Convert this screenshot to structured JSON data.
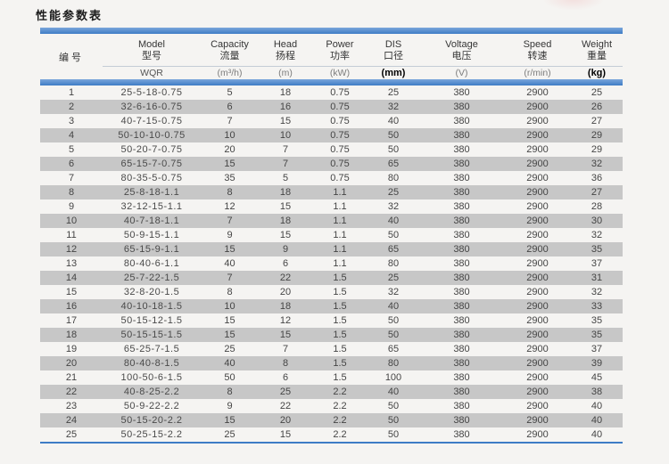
{
  "page": {
    "title": "性能参数表"
  },
  "colors": {
    "accent_blue": "#3e7cc5",
    "row_stripe": "#c7c7c7",
    "background": "#f5f4f2"
  },
  "table": {
    "columns": [
      {
        "key": "num",
        "label_en": "",
        "label_zh": "编号",
        "unit": ""
      },
      {
        "key": "model",
        "label_en": "Model",
        "label_zh": "型号",
        "unit": "WQR"
      },
      {
        "key": "capacity",
        "label_en": "Capacity",
        "label_zh": "流量",
        "unit": "(m³/h)"
      },
      {
        "key": "head",
        "label_en": "Head",
        "label_zh": "扬程",
        "unit": "(m)"
      },
      {
        "key": "power",
        "label_en": "Power",
        "label_zh": "功率",
        "unit": "(kW)"
      },
      {
        "key": "dis",
        "label_en": "DIS",
        "label_zh": "口径",
        "unit": "(mm)"
      },
      {
        "key": "voltage",
        "label_en": "Voltage",
        "label_zh": "电压",
        "unit": "(V)"
      },
      {
        "key": "speed",
        "label_en": "Speed",
        "label_zh": "转速",
        "unit": "(r/min)"
      },
      {
        "key": "weight",
        "label_en": "Weight",
        "label_zh": "重量",
        "unit": "(kg)"
      }
    ],
    "rows": [
      [
        "1",
        "25-5-18-0.75",
        "5",
        "18",
        "0.75",
        "25",
        "380",
        "2900",
        "25"
      ],
      [
        "2",
        "32-6-16-0.75",
        "6",
        "16",
        "0.75",
        "32",
        "380",
        "2900",
        "26"
      ],
      [
        "3",
        "40-7-15-0.75",
        "7",
        "15",
        "0.75",
        "40",
        "380",
        "2900",
        "27"
      ],
      [
        "4",
        "50-10-10-0.75",
        "10",
        "10",
        "0.75",
        "50",
        "380",
        "2900",
        "29"
      ],
      [
        "5",
        "50-20-7-0.75",
        "20",
        "7",
        "0.75",
        "50",
        "380",
        "2900",
        "29"
      ],
      [
        "6",
        "65-15-7-0.75",
        "15",
        "7",
        "0.75",
        "65",
        "380",
        "2900",
        "32"
      ],
      [
        "7",
        "80-35-5-0.75",
        "35",
        "5",
        "0.75",
        "80",
        "380",
        "2900",
        "36"
      ],
      [
        "8",
        "25-8-18-1.1",
        "8",
        "18",
        "1.1",
        "25",
        "380",
        "2900",
        "27"
      ],
      [
        "9",
        "32-12-15-1.1",
        "12",
        "15",
        "1.1",
        "32",
        "380",
        "2900",
        "28"
      ],
      [
        "10",
        "40-7-18-1.1",
        "7",
        "18",
        "1.1",
        "40",
        "380",
        "2900",
        "30"
      ],
      [
        "11",
        "50-9-15-1.1",
        "9",
        "15",
        "1.1",
        "50",
        "380",
        "2900",
        "32"
      ],
      [
        "12",
        "65-15-9-1.1",
        "15",
        "9",
        "1.1",
        "65",
        "380",
        "2900",
        "35"
      ],
      [
        "13",
        "80-40-6-1.1",
        "40",
        "6",
        "1.1",
        "80",
        "380",
        "2900",
        "37"
      ],
      [
        "14",
        "25-7-22-1.5",
        "7",
        "22",
        "1.5",
        "25",
        "380",
        "2900",
        "31"
      ],
      [
        "15",
        "32-8-20-1.5",
        "8",
        "20",
        "1.5",
        "32",
        "380",
        "2900",
        "32"
      ],
      [
        "16",
        "40-10-18-1.5",
        "10",
        "18",
        "1.5",
        "40",
        "380",
        "2900",
        "33"
      ],
      [
        "17",
        "50-15-12-1.5",
        "15",
        "12",
        "1.5",
        "50",
        "380",
        "2900",
        "35"
      ],
      [
        "18",
        "50-15-15-1.5",
        "15",
        "15",
        "1.5",
        "50",
        "380",
        "2900",
        "35"
      ],
      [
        "19",
        "65-25-7-1.5",
        "25",
        "7",
        "1.5",
        "65",
        "380",
        "2900",
        "37"
      ],
      [
        "20",
        "80-40-8-1.5",
        "40",
        "8",
        "1.5",
        "80",
        "380",
        "2900",
        "39"
      ],
      [
        "21",
        "100-50-6-1.5",
        "50",
        "6",
        "1.5",
        "100",
        "380",
        "2900",
        "45"
      ],
      [
        "22",
        "40-8-25-2.2",
        "8",
        "25",
        "2.2",
        "40",
        "380",
        "2900",
        "38"
      ],
      [
        "23",
        "50-9-22-2.2",
        "9",
        "22",
        "2.2",
        "50",
        "380",
        "2900",
        "40"
      ],
      [
        "24",
        "50-15-20-2.2",
        "15",
        "20",
        "2.2",
        "50",
        "380",
        "2900",
        "40"
      ],
      [
        "25",
        "50-25-15-2.2",
        "25",
        "15",
        "2.2",
        "50",
        "380",
        "2900",
        "40"
      ]
    ]
  }
}
